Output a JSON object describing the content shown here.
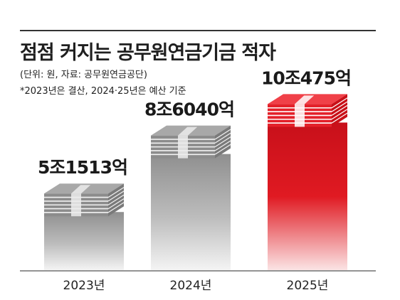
{
  "header": {
    "title": "점점 커지는 공무원연금기금 적자",
    "unit_note": "(단위: 원, 자료: 공무원연금공단)",
    "footnote": "*2023년은 결산, 2024·25년은 예산 기준"
  },
  "chart_data": {
    "type": "bar",
    "categories": [
      "2023년",
      "2024년",
      "2025년"
    ],
    "values": [
      51513,
      86040,
      104750
    ],
    "value_labels": [
      "5조1513억",
      "8조6040억",
      "10조475억"
    ],
    "unit": "억원",
    "highlight_index": 2,
    "colors": {
      "normal": "#9a9a9a",
      "highlight": "#d9111b",
      "axis": "#555555"
    },
    "ylim": [
      0,
      110000
    ],
    "grid": false,
    "legend": "none"
  }
}
